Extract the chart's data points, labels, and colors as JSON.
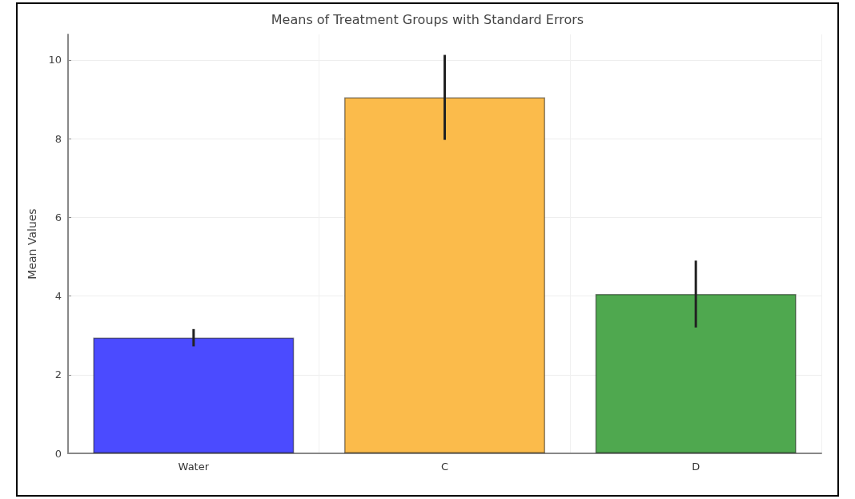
{
  "chart_data": {
    "type": "bar",
    "title": "Means of Treatment Groups with Standard Errors",
    "ylabel": "Mean Values",
    "categories": [
      "Water",
      "C",
      "D"
    ],
    "values": [
      2.94,
      9.05,
      4.05
    ],
    "errors": [
      0.22,
      1.08,
      0.85
    ],
    "colors": [
      "#4b4bff",
      "#fbbb4b",
      "#4fa84f"
    ],
    "ylim": [
      0,
      10.65
    ],
    "yticks": [
      0,
      2,
      4,
      6,
      8,
      10
    ],
    "grid": true
  }
}
